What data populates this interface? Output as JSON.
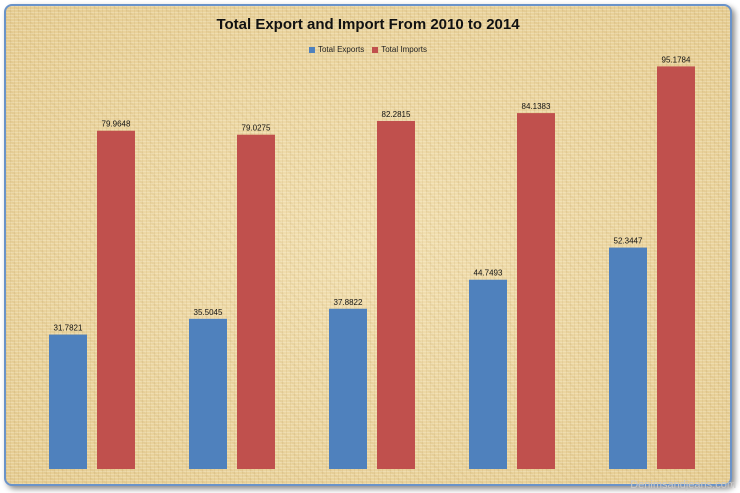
{
  "chart_data": {
    "type": "bar",
    "title": "Total Export and Import From 2010 to 2014",
    "categories": [
      "",
      "",
      "",
      "",
      ""
    ],
    "series": [
      {
        "name": "Total Exports",
        "color": "#4f81bd",
        "values": [
          31.7821,
          35.5045,
          37.8822,
          44.7493,
          52.3447
        ],
        "labels": [
          "31.7821",
          "35.5045",
          "37.8822",
          "44.7493",
          "52.3447"
        ]
      },
      {
        "name": "Total Imports",
        "color": "#c0504d",
        "values": [
          79.9648,
          79.0275,
          82.2815,
          84.1383,
          95.1784
        ],
        "labels": [
          "79.9648",
          "79.0275",
          "82.2815",
          "84.1383",
          "95.1784"
        ]
      }
    ],
    "ylim": [
      0,
      100
    ],
    "grid": false,
    "legend_position": "top"
  },
  "watermark": "Denimsandjeans.com"
}
